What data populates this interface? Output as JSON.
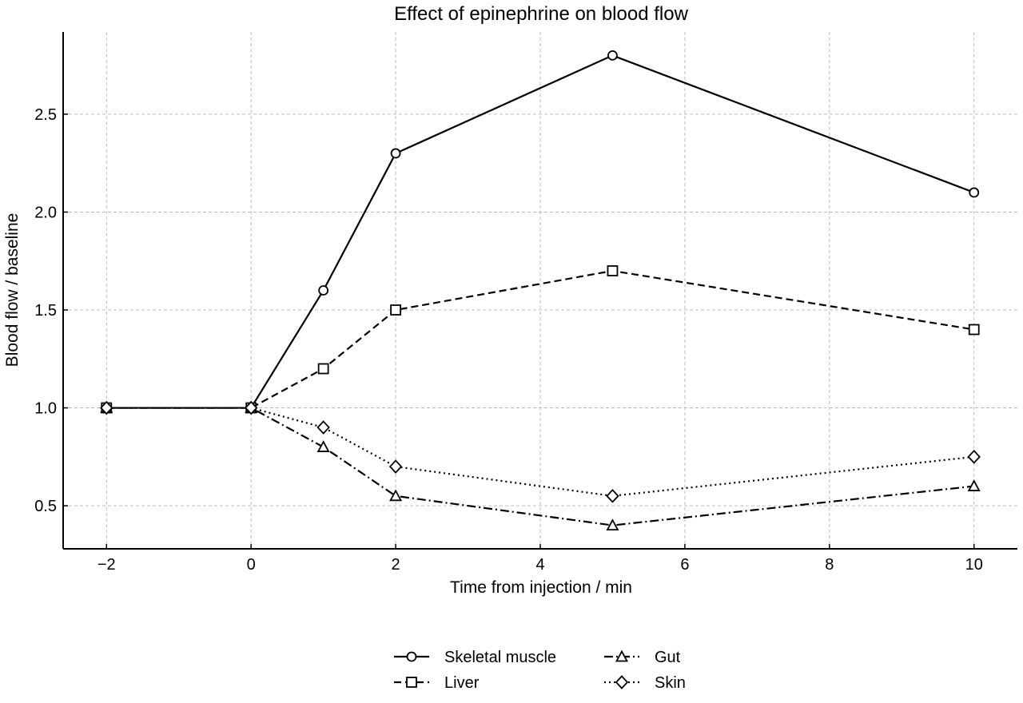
{
  "chart_data": {
    "type": "line",
    "title": "Effect of epinephrine on blood flow",
    "xlabel": "Time from injection / min",
    "ylabel": "Blood flow / baseline",
    "xlim": [
      -2.6,
      10.6
    ],
    "ylim": [
      0.28,
      2.92
    ],
    "xticks": [
      -2,
      0,
      2,
      4,
      6,
      8,
      10
    ],
    "xtick_labels": [
      "−2",
      "0",
      "2",
      "4",
      "6",
      "8",
      "10"
    ],
    "yticks": [
      0.5,
      1.0,
      1.5,
      2.0,
      2.5
    ],
    "ytick_labels": [
      "0.5",
      "1.0",
      "1.5",
      "2.0",
      "2.5"
    ],
    "grid": true,
    "legend_position": "bottom-center",
    "x": [
      -2,
      0,
      1,
      2,
      5,
      10
    ],
    "series": [
      {
        "name": "Skeletal muscle",
        "values": [
          1.0,
          1.0,
          1.6,
          2.3,
          2.8,
          2.1
        ],
        "line_style": "solid",
        "marker": "circle",
        "color": "#000000"
      },
      {
        "name": "Liver",
        "values": [
          1.0,
          1.0,
          1.2,
          1.5,
          1.7,
          1.4
        ],
        "line_style": "dashed",
        "marker": "square",
        "color": "#000000"
      },
      {
        "name": "Gut",
        "values": [
          1.0,
          1.0,
          0.8,
          0.55,
          0.4,
          0.6
        ],
        "line_style": "dashdot",
        "marker": "triangle",
        "color": "#000000"
      },
      {
        "name": "Skin",
        "values": [
          1.0,
          1.0,
          0.9,
          0.7,
          0.55,
          0.75
        ],
        "line_style": "dotted",
        "marker": "diamond",
        "color": "#000000"
      }
    ]
  }
}
